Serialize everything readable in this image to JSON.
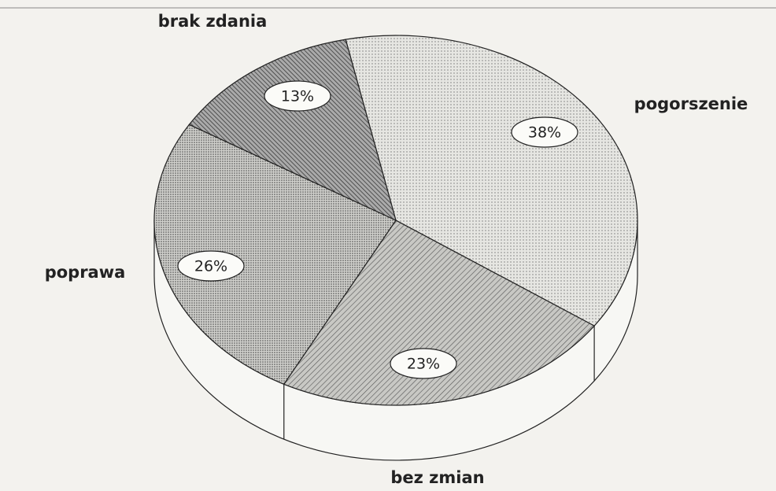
{
  "chart_data": {
    "type": "pie",
    "categories": [
      "pogorszenie",
      "bez zmian",
      "poprawa",
      "brak zdania"
    ],
    "values": [
      38,
      23,
      26,
      13
    ],
    "value_labels": [
      "38%",
      "23%",
      "26%",
      "13%"
    ],
    "colors": [
      "#d8d8d4",
      "#a9a9a5",
      "#bdbdb9",
      "#8c8c88"
    ]
  }
}
